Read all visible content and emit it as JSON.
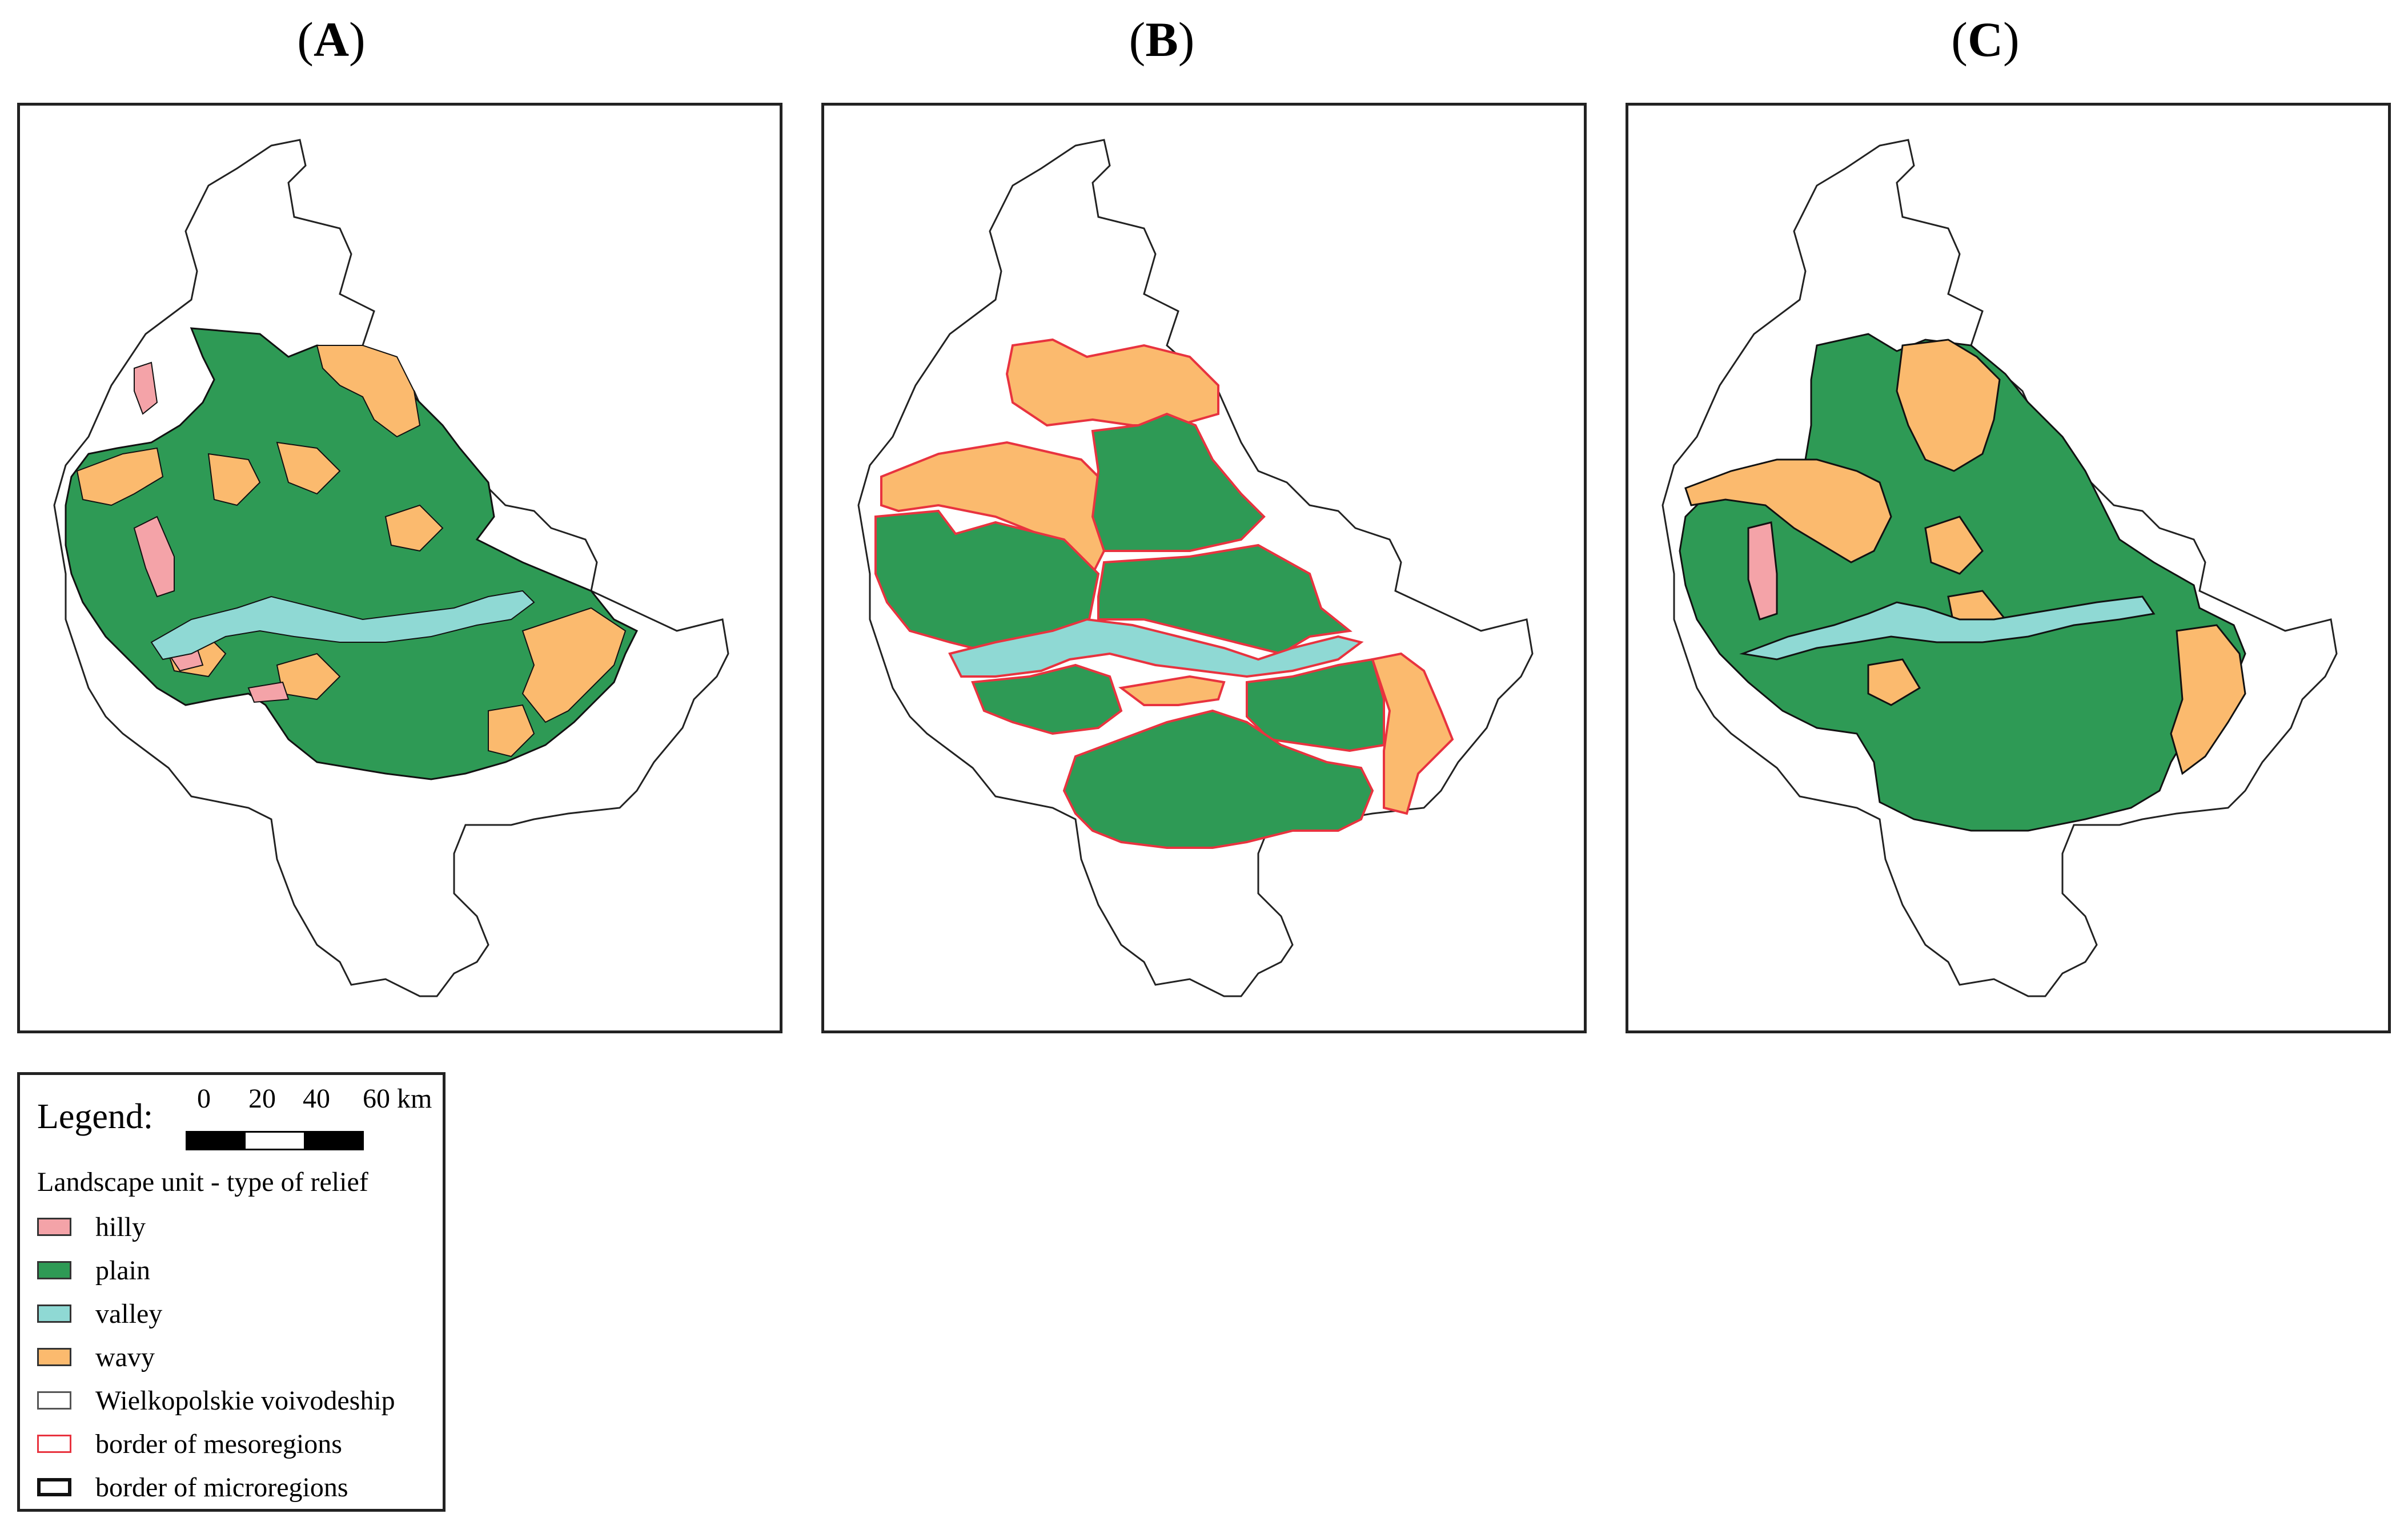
{
  "panels": [
    {
      "label": "A"
    },
    {
      "label": "B"
    },
    {
      "label": "C"
    }
  ],
  "colors": {
    "hilly": "#f4a3a8",
    "plain": "#2e9a55",
    "valley": "#8fd9d4",
    "wavy": "#fbba6e",
    "voivodeship_fill": "#ffffff",
    "mesoregion_border": "#e8333f",
    "microregion_border": "#111111"
  },
  "legend": {
    "title": "Legend:",
    "scale": {
      "ticks": [
        "0",
        "20",
        "40",
        "60 km"
      ]
    },
    "subtitle": "Landscape unit  - type of relief",
    "items": [
      {
        "key": "hilly",
        "label": "hilly",
        "swatch": "hilly"
      },
      {
        "key": "plain",
        "label": "plain",
        "swatch": "plain"
      },
      {
        "key": "valley",
        "label": "valley",
        "swatch": "valley"
      },
      {
        "key": "wavy",
        "label": "wavy",
        "swatch": "wavy"
      },
      {
        "key": "voivodeship",
        "label": "Wielkopolskie voivodeship",
        "swatch": "voivodeship"
      },
      {
        "key": "mesoregions",
        "label": "border of mesoregions",
        "swatch": "mesoregions"
      },
      {
        "key": "microregions",
        "label": "border of microregions",
        "swatch": "microregions"
      }
    ]
  }
}
